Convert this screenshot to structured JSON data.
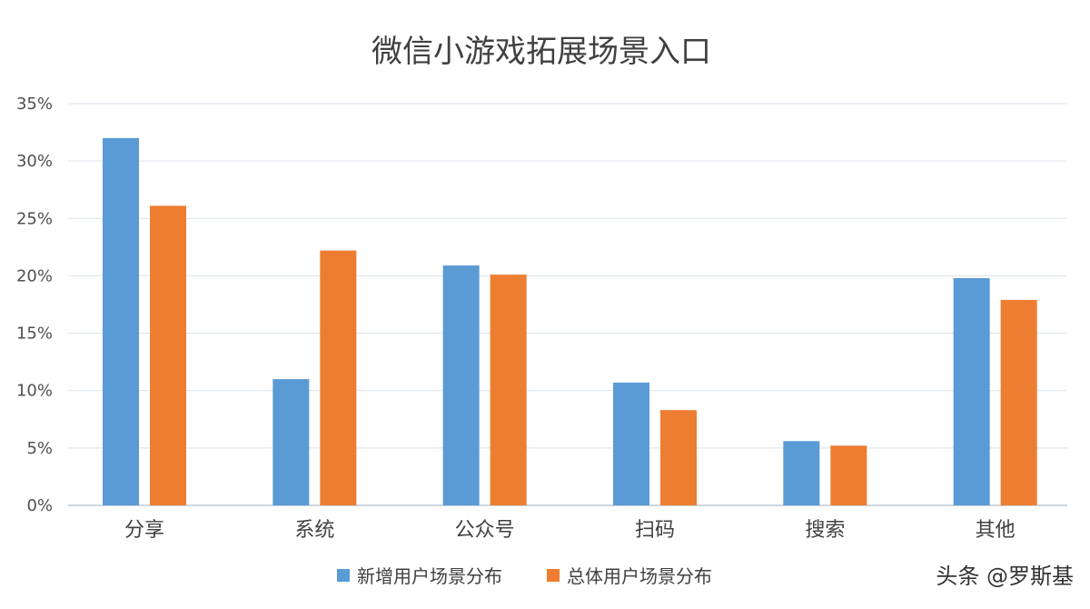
{
  "chart_data": {
    "type": "bar",
    "title": "微信小游戏拓展场景入口",
    "categories": [
      "分享",
      "系统",
      "公众号",
      "扫码",
      "搜索",
      "其他"
    ],
    "series": [
      {
        "name": "新增用户场景分布",
        "color": "#5B9BD5",
        "values": [
          32.0,
          11.0,
          20.9,
          10.7,
          5.6,
          19.8
        ]
      },
      {
        "name": "总体用户场景分布",
        "color": "#ED7D31",
        "values": [
          26.1,
          22.2,
          20.1,
          8.3,
          5.2,
          17.9
        ]
      }
    ],
    "ylim": [
      0,
      35
    ],
    "yticks": [
      "0%",
      "5%",
      "10%",
      "15%",
      "20%",
      "25%",
      "30%",
      "35%"
    ],
    "xlabel": "",
    "ylabel": "",
    "grid": true,
    "legend_position": "bottom-center",
    "gridline_color": "#D9E1EA",
    "axis_color": "#BFC9D4"
  },
  "watermark": "头条 @罗斯基"
}
